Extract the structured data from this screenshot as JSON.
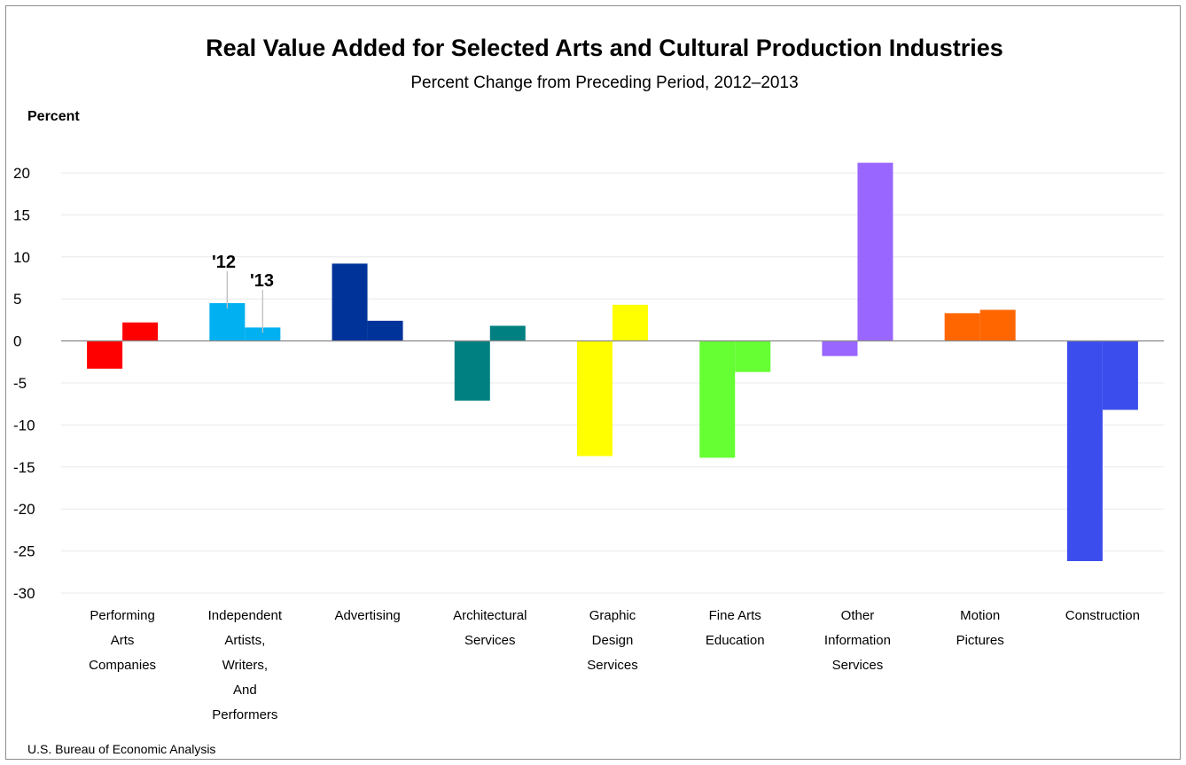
{
  "chart_data": {
    "type": "bar",
    "title": "Real Value Added for Selected Arts and Cultural Production Industries",
    "subtitle": "Percent Change from Preceding Period,  2012–2013",
    "ylabel": "Percent",
    "ylim": [
      -30,
      20
    ],
    "yticks": [
      "20",
      "15",
      "10",
      "5",
      "0",
      "-5",
      "-10",
      "-15",
      "-20",
      "-25",
      "-30"
    ],
    "ytick_values": [
      20,
      15,
      10,
      5,
      0,
      -5,
      -10,
      -15,
      -20,
      -25,
      -30
    ],
    "grid": true,
    "categories": [
      "Performing Arts Companies",
      "Independent Artists, Writers, And Performers",
      "Advertising",
      "Architectural Services",
      "Graphic Design Services",
      "Fine Arts Education",
      "Other Information Services",
      "Motion Pictures",
      "Construction"
    ],
    "category_lines": [
      [
        "Performing",
        "Arts",
        "Companies"
      ],
      [
        "Independent",
        "Artists,",
        "Writers,",
        "And",
        "Performers"
      ],
      [
        "Advertising"
      ],
      [
        "Architectural",
        "Services"
      ],
      [
        "Graphic",
        "Design",
        "Services"
      ],
      [
        "Fine Arts",
        "Education"
      ],
      [
        "Other",
        "Information",
        "Services"
      ],
      [
        "Motion",
        "Pictures"
      ],
      [
        "Construction"
      ]
    ],
    "series": [
      {
        "name": "'12",
        "values": [
          -3.3,
          4.5,
          9.2,
          -7.1,
          -13.7,
          -13.9,
          -1.8,
          3.3,
          -26.2
        ]
      },
      {
        "name": "'13",
        "values": [
          2.2,
          1.6,
          2.4,
          1.8,
          4.3,
          -3.7,
          21.2,
          3.7,
          -8.2
        ]
      }
    ],
    "colors": [
      "#ff0000",
      "#00b0f0",
      "#003399",
      "#008080",
      "#ffff00",
      "#66ff33",
      "#9966ff",
      "#ff6600",
      "#3b4ded"
    ],
    "annotations": [
      {
        "text": "'12",
        "category_index": 1,
        "series_index": 0
      },
      {
        "text": "'13",
        "category_index": 1,
        "series_index": 1
      }
    ],
    "source": "U.S. Bureau of Economic Analysis"
  }
}
